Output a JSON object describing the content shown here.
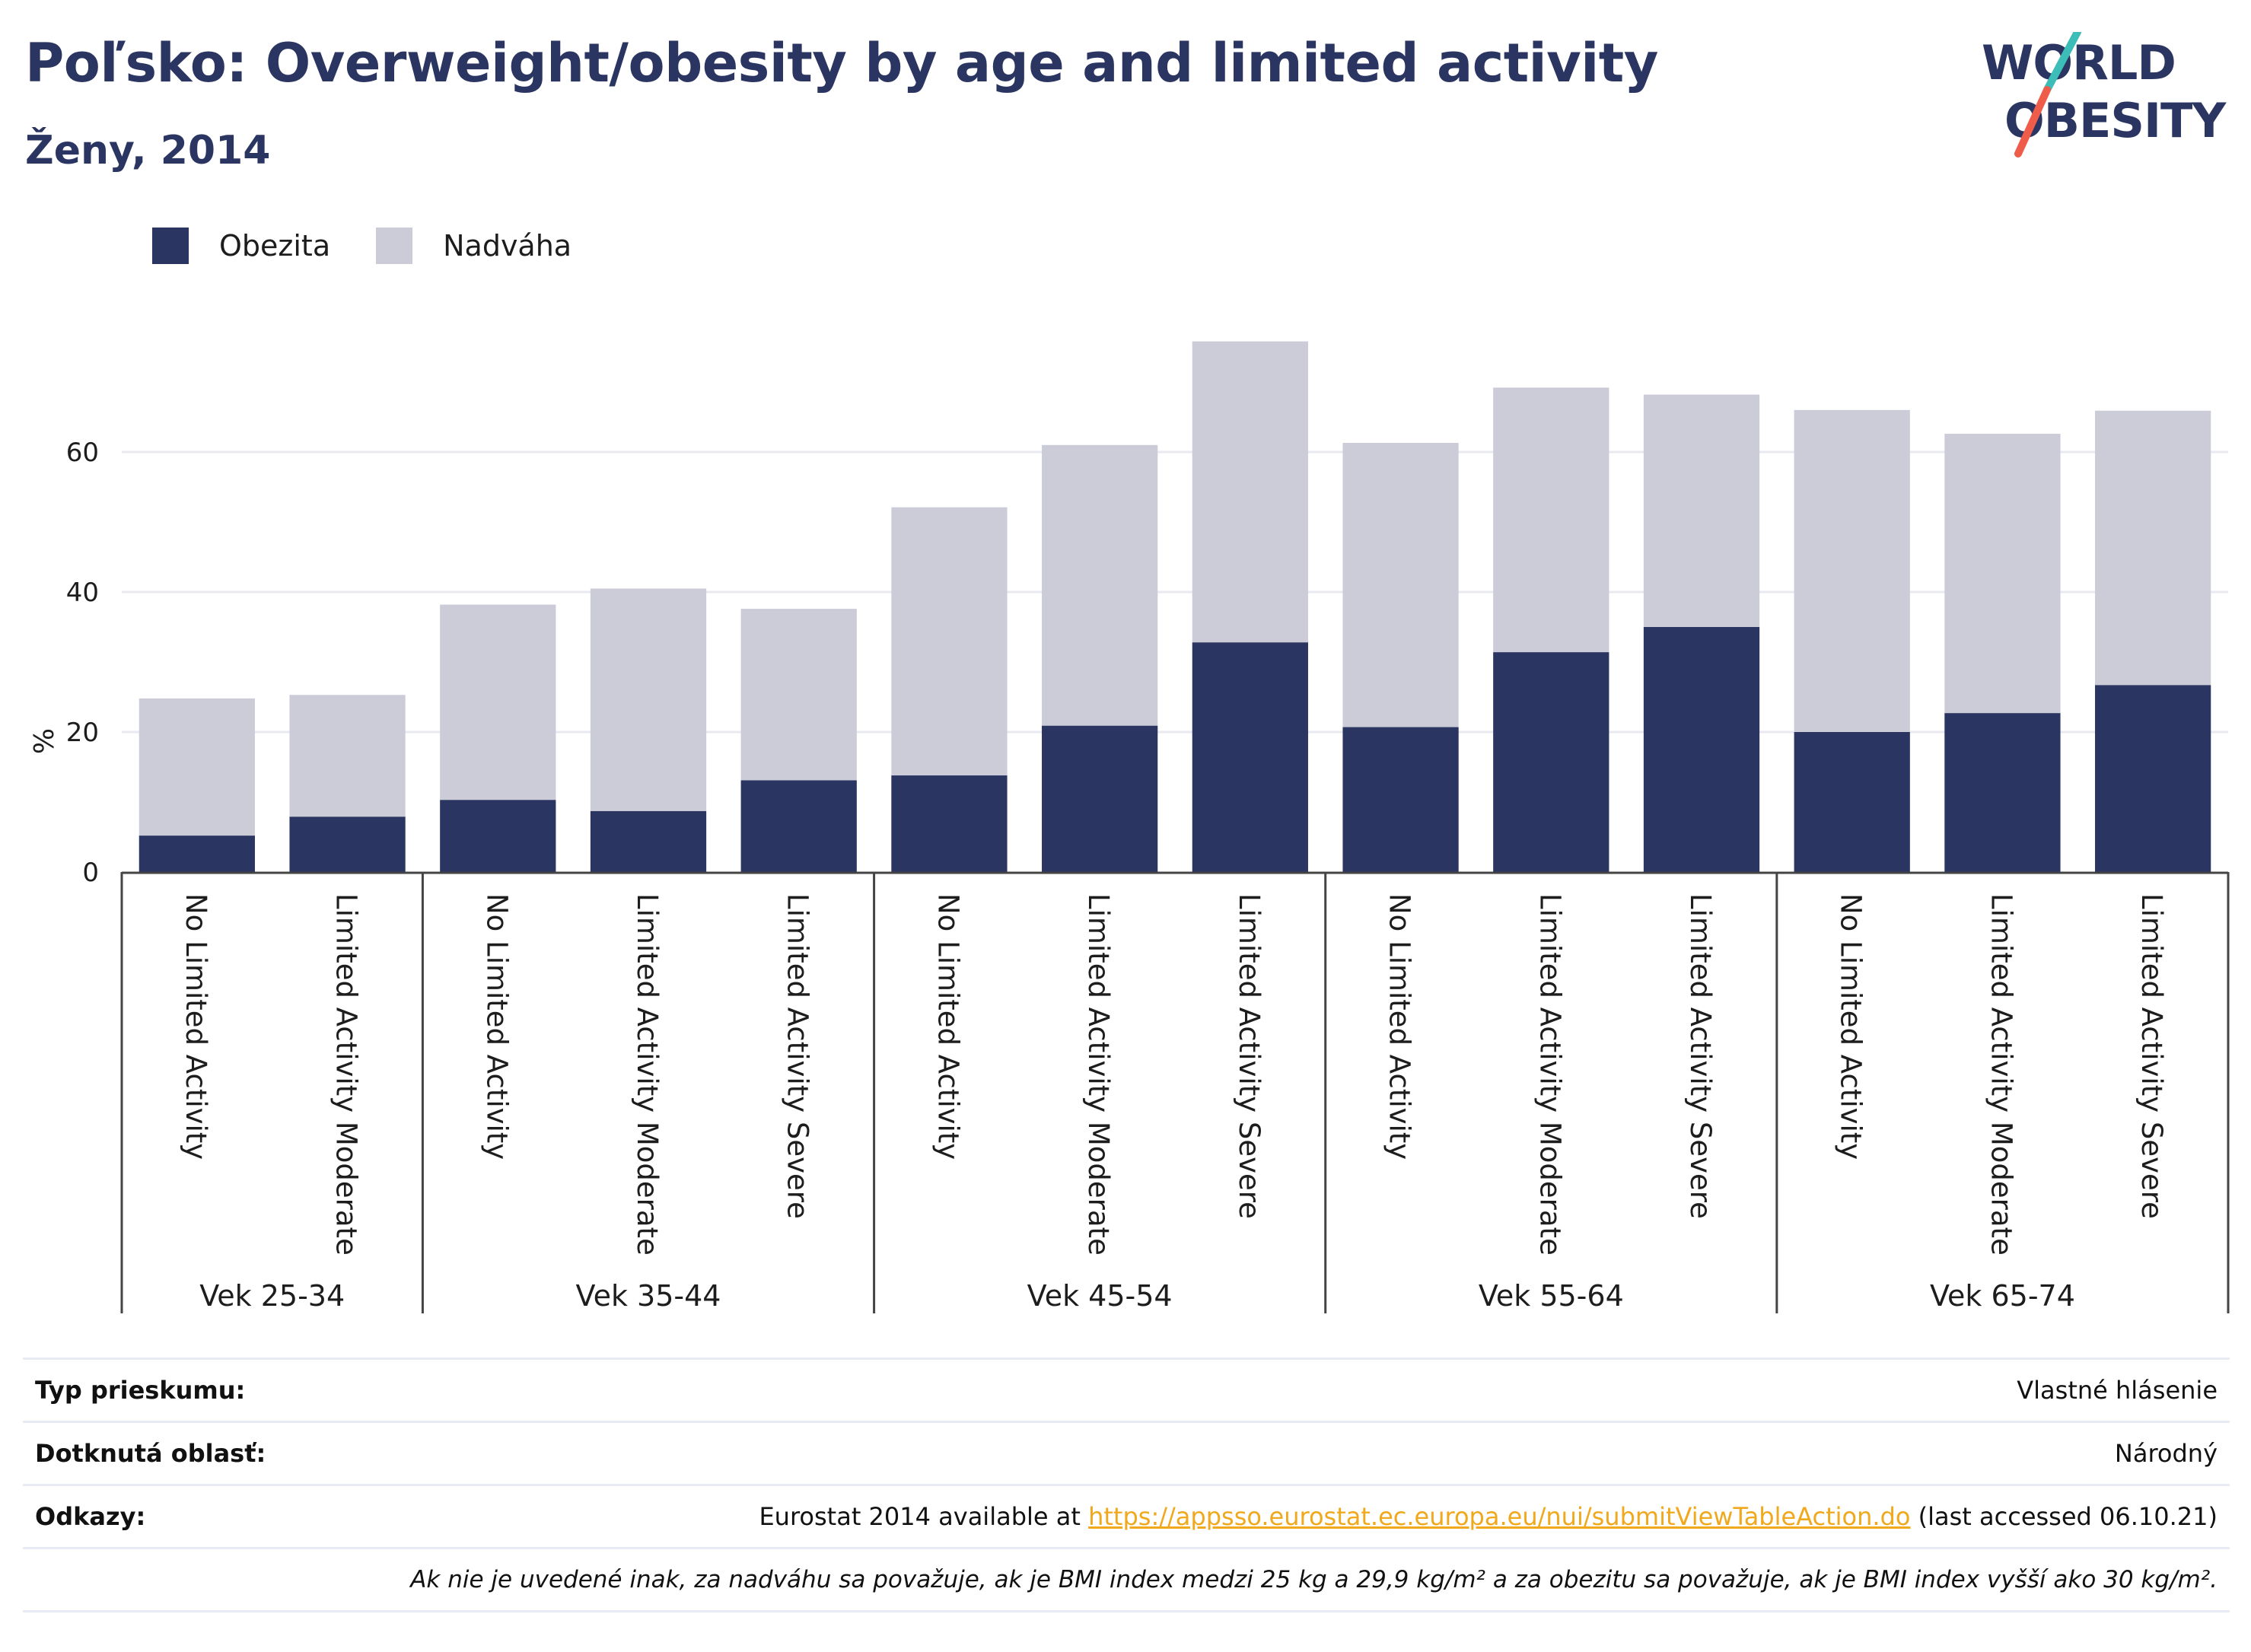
{
  "title": "Poľsko: Overweight/obesity by age and limited activity",
  "subtitle": "Ženy, 2014",
  "logo": {
    "line1": "WORLD",
    "line2": "OBESITY"
  },
  "legend": [
    {
      "label": "Obezita",
      "color": "#2b3562"
    },
    {
      "label": "Nadváha",
      "color": "#cbccd8"
    }
  ],
  "chart_data": {
    "type": "bar",
    "stacked": true,
    "ylabel": "%",
    "ylim": [
      0,
      78
    ],
    "yticks": [
      0,
      20,
      40,
      60
    ],
    "grid": true,
    "legend_position": "top-left",
    "groups": [
      {
        "label": "Vek 25-34",
        "categories": [
          "No Limited Activity",
          "Limited Activity Moderate"
        ]
      },
      {
        "label": "Vek 35-44",
        "categories": [
          "No Limited Activity",
          "Limited Activity Moderate",
          "Limited Activity Severe"
        ]
      },
      {
        "label": "Vek 45-54",
        "categories": [
          "No Limited Activity",
          "Limited Activity Moderate",
          "Limited Activity Severe"
        ]
      },
      {
        "label": "Vek 55-64",
        "categories": [
          "No Limited Activity",
          "Limited Activity Moderate",
          "Limited Activity Severe"
        ]
      },
      {
        "label": "Vek 65-74",
        "categories": [
          "No Limited Activity",
          "Limited Activity Moderate",
          "Limited Activity Severe"
        ]
      }
    ],
    "series": [
      {
        "name": "Obezita",
        "color": "#2b3562",
        "values": [
          5.2,
          7.9,
          10.3,
          8.7,
          13.1,
          13.8,
          20.9,
          32.8,
          20.7,
          31.4,
          35.0,
          20.0,
          22.7,
          26.7
        ]
      },
      {
        "name": "Nadváha",
        "color": "#cbccd8",
        "values": [
          19.6,
          17.4,
          27.9,
          31.8,
          24.5,
          38.3,
          40.1,
          43.0,
          40.6,
          37.8,
          33.2,
          46.0,
          39.9,
          39.2
        ]
      }
    ]
  },
  "info": {
    "survey_label": "Typ prieskumu:",
    "survey_value": "Vlastné hlásenie",
    "area_label": "Dotknutá oblasť:",
    "area_value": "Národný",
    "refs_label": "Odkazy:",
    "refs_prefix": "Eurostat 2014 available at ",
    "refs_link": "https://appsso.eurostat.ec.europa.eu/nui/submitViewTableAction.do",
    "refs_suffix": " (last accessed 06.10.21)",
    "note": "Ak nie je uvedené inak, za nadváhu sa považuje, ak je BMI index medzi 25 kg a 29,9 kg/m² a za obezitu sa považuje, ak je BMI index vyšší ako 30 kg/m²."
  }
}
